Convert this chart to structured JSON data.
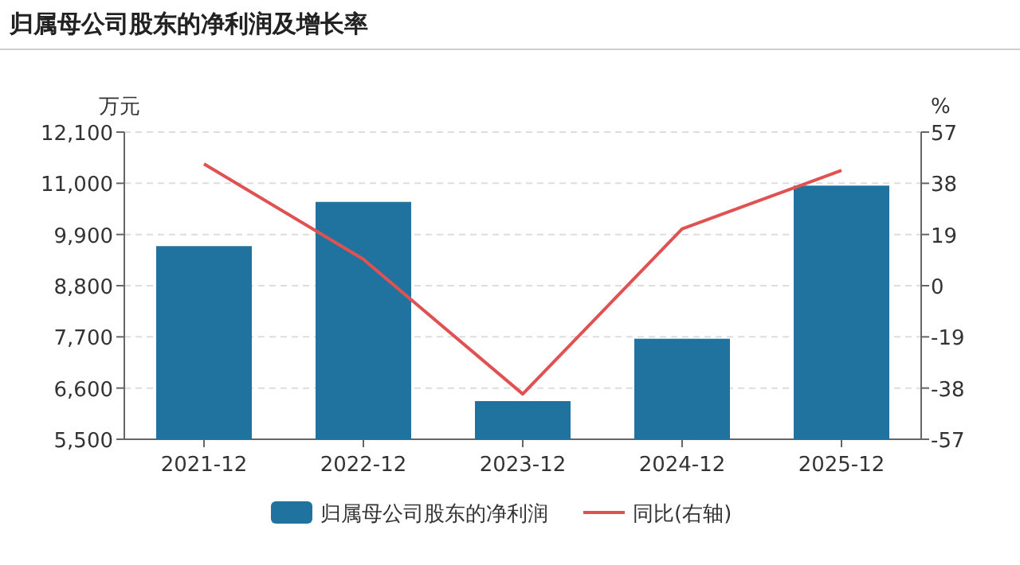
{
  "chart_data": {
    "type": "bar",
    "title": "归属母公司股东的净利润及增长率",
    "categories": [
      "2021-12",
      "2022-12",
      "2023-12",
      "2024-12",
      "2025-12"
    ],
    "series": [
      {
        "name": "归属母公司股东的净利润",
        "color": "#21739f",
        "values": [
          9650,
          10600,
          6320,
          7660,
          10950
        ]
      },
      {
        "name": "同比(右轴)",
        "type": "line",
        "axis": "y2",
        "color": "#e05252",
        "values": [
          45.2,
          9.8,
          -40.2,
          21.1,
          42.8
        ]
      }
    ],
    "ylabel": "万元",
    "y2label": "%",
    "ylim": [
      5500,
      12100
    ],
    "yticks": [
      {
        "value": 5500,
        "label": "5,500"
      },
      {
        "value": 6600,
        "label": "6,600"
      },
      {
        "value": 7700,
        "label": "7,700"
      },
      {
        "value": 8800,
        "label": "8,800"
      },
      {
        "value": 9900,
        "label": "9,900"
      },
      {
        "value": 11000,
        "label": "11,000"
      },
      {
        "value": 12100,
        "label": "12,100"
      }
    ],
    "y2lim": [
      -57,
      57
    ],
    "y2ticks": [
      -57,
      -38,
      -19,
      0,
      19,
      38,
      57
    ],
    "grid": "y",
    "legend": "bottom",
    "marker": "none"
  }
}
